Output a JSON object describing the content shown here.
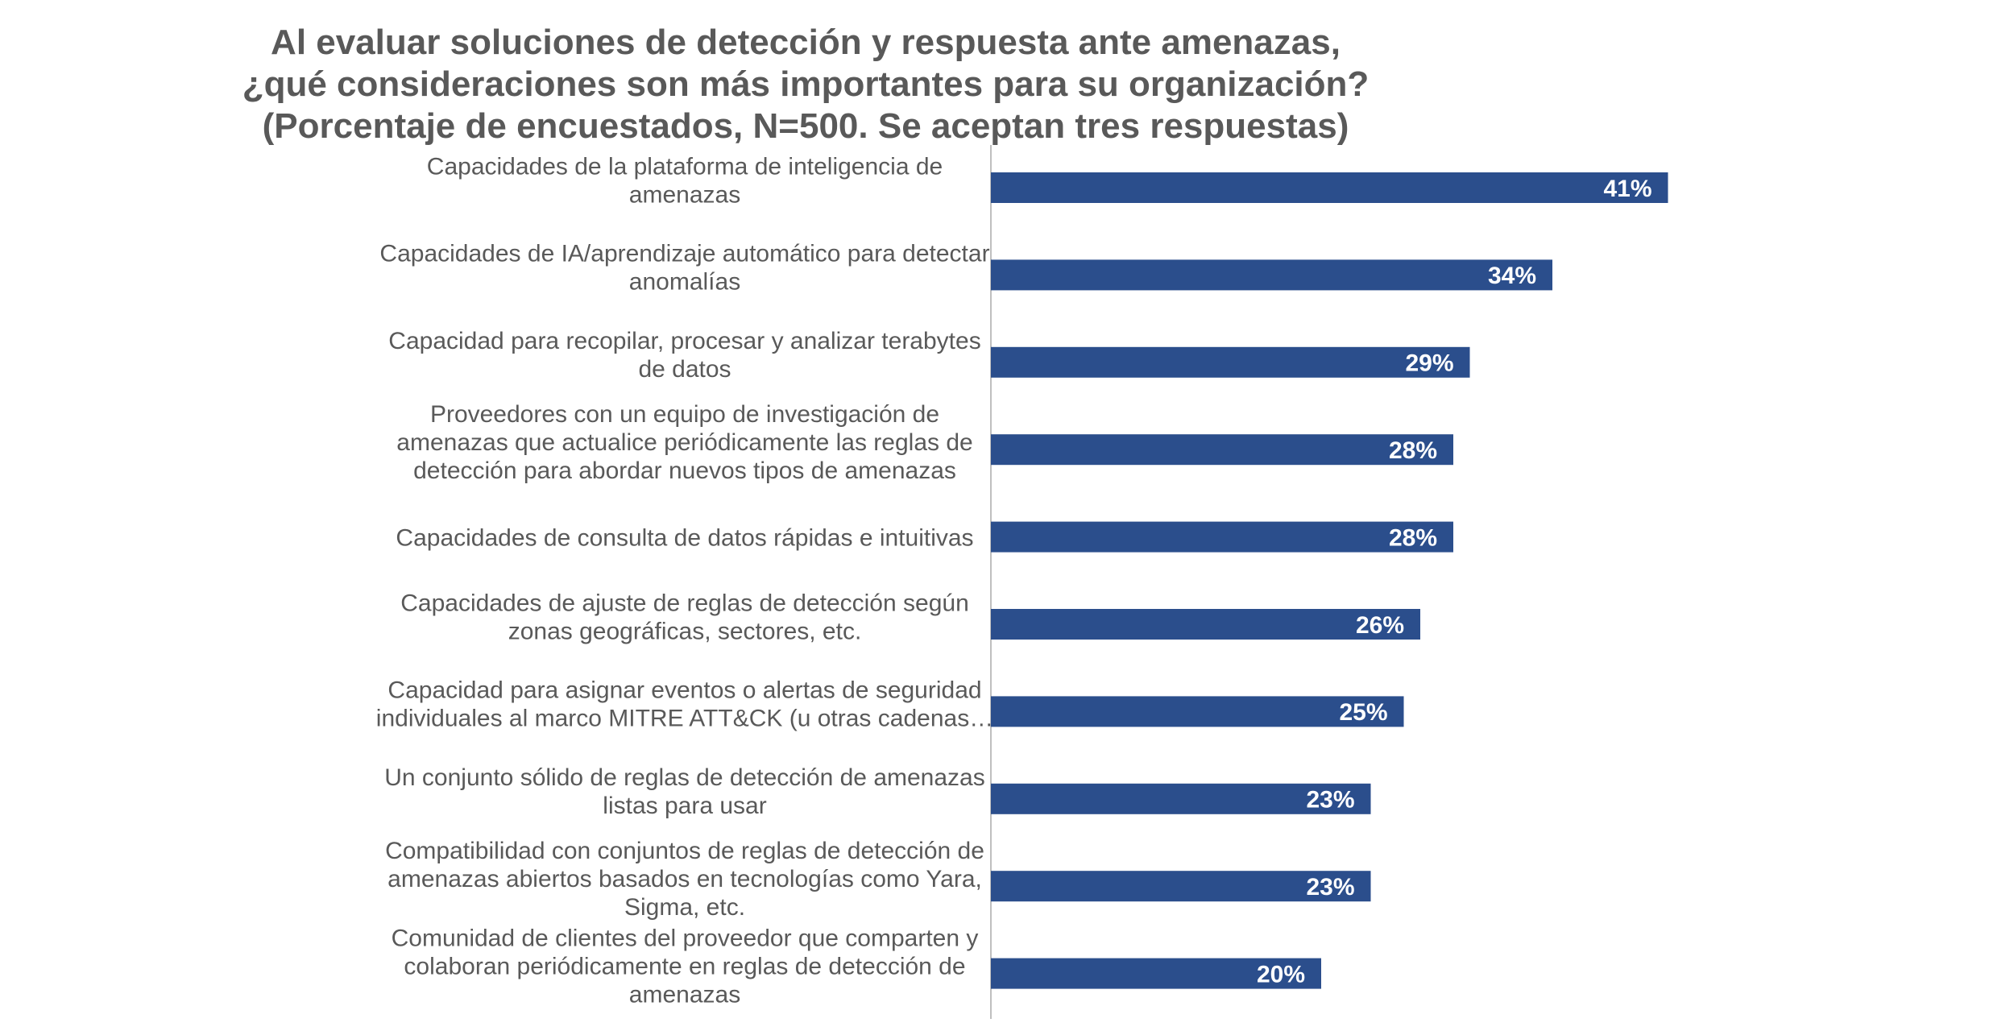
{
  "chart_data": {
    "type": "bar",
    "orientation": "horizontal",
    "title": [
      "Al evaluar soluciones de detección y respuesta ante amenazas,",
      "¿qué consideraciones son más importantes para su organización?",
      "(Porcentaje de encuestados, N=500. Se aceptan tres respuestas)"
    ],
    "categories": [
      [
        "Capacidades de la plataforma de inteligencia de",
        "amenazas"
      ],
      [
        "Capacidades de IA/aprendizaje automático para detectar",
        "anomalías"
      ],
      [
        "Capacidad para recopilar, procesar y analizar terabytes",
        "de datos"
      ],
      [
        "Proveedores con un equipo de investigación de",
        "amenazas que actualice periódicamente las reglas de",
        "detección para abordar nuevos tipos de amenazas"
      ],
      [
        "Capacidades de consulta de datos rápidas e intuitivas"
      ],
      [
        "Capacidades de ajuste de reglas de detección según",
        "zonas geográficas, sectores, etc."
      ],
      [
        "Capacidad para asignar eventos o alertas de seguridad",
        "individuales al marco MITRE ATT&CK (u otras cadenas…"
      ],
      [
        "Un conjunto sólido de reglas de detección de amenazas",
        "listas para usar"
      ],
      [
        "Compatibilidad con conjuntos de reglas de detección de",
        "amenazas abiertos basados en tecnologías como Yara,",
        "Sigma, etc."
      ],
      [
        "Comunidad de clientes del proveedor que comparten y",
        "colaboran periódicamente en reglas de detección de",
        "amenazas"
      ]
    ],
    "values": [
      41,
      34,
      29,
      28,
      28,
      26,
      25,
      23,
      23,
      20
    ],
    "value_labels": [
      "41%",
      "34%",
      "29%",
      "28%",
      "28%",
      "26%",
      "25%",
      "23%",
      "23%",
      "20%"
    ],
    "unit": "%",
    "xlim": [
      0,
      60
    ],
    "grid": false,
    "legend": "none",
    "bar_color": "#2B4E8C",
    "label_color": "#595959",
    "value_label_color": "#FFFFFF",
    "axis_color": "#BFBFBF"
  }
}
